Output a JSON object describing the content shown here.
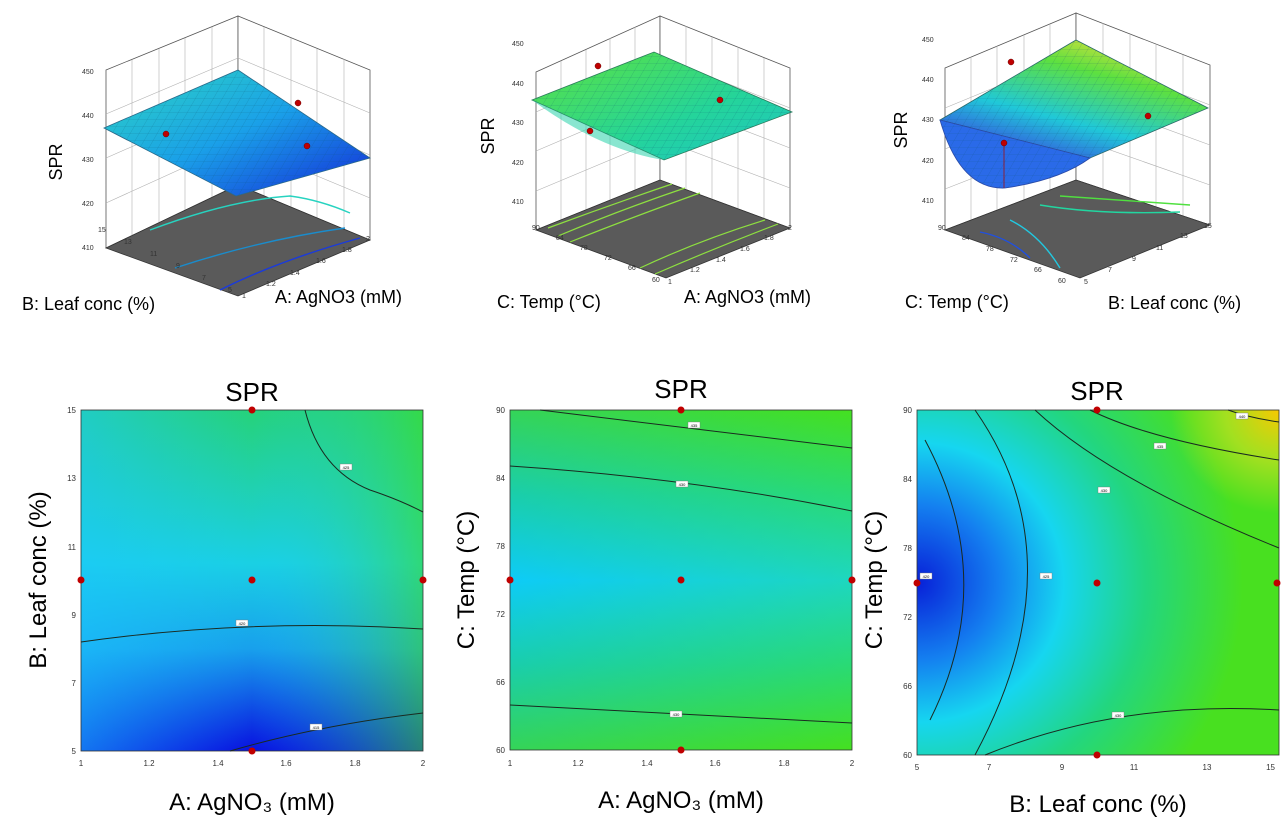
{
  "chart_data": [
    {
      "type": "surface3d",
      "zlabel": "SPR",
      "xlabel": "A: AgNO3 (mM)",
      "ylabel": "B: Leaf conc (%)",
      "x_ticks": [
        "1",
        "1.2",
        "1.4",
        "1.6",
        "1.8",
        "2"
      ],
      "y_ticks": [
        "5",
        "7",
        "9",
        "11",
        "13",
        "15"
      ],
      "z_ticks": [
        "410",
        "420",
        "430",
        "440",
        "450"
      ],
      "zlim": [
        410,
        450
      ],
      "design_points": [
        {
          "a": 1.5,
          "b": 10,
          "spr": 423
        },
        {
          "a": 1.5,
          "b": 15,
          "spr": 430
        },
        {
          "a": 2.0,
          "b": 10,
          "spr": 419
        }
      ]
    },
    {
      "type": "surface3d",
      "zlabel": "SPR",
      "xlabel": "A: AgNO3 (mM)",
      "ylabel": "C: Temp (°C)",
      "x_ticks": [
        "1",
        "1.2",
        "1.4",
        "1.6",
        "1.8",
        "2"
      ],
      "y_ticks": [
        "60",
        "66",
        "72",
        "78",
        "84",
        "90"
      ],
      "z_ticks": [
        "410",
        "420",
        "430",
        "440",
        "450"
      ],
      "zlim": [
        410,
        450
      ],
      "design_points": [
        {
          "a": 1.5,
          "c": 90,
          "spr": 443
        },
        {
          "a": 1.5,
          "c": 75,
          "spr": 423
        },
        {
          "a": 2.0,
          "c": 75,
          "spr": 432
        }
      ]
    },
    {
      "type": "surface3d",
      "zlabel": "SPR",
      "xlabel": "B: Leaf conc (%)",
      "ylabel": "C: Temp (°C)",
      "x_ticks": [
        "5",
        "7",
        "9",
        "11",
        "13",
        "15"
      ],
      "y_ticks": [
        "60",
        "66",
        "72",
        "78",
        "84",
        "90"
      ],
      "z_ticks": [
        "410",
        "420",
        "430",
        "440",
        "450"
      ],
      "zlim": [
        410,
        450
      ],
      "design_points": [
        {
          "b": 10,
          "c": 90,
          "spr": 443
        },
        {
          "b": 10,
          "c": 75,
          "spr": 420
        },
        {
          "b": 15,
          "c": 75,
          "spr": 428
        }
      ]
    },
    {
      "type": "contour",
      "title": "SPR",
      "xlabel": "A: AgNO₃ (mM)",
      "ylabel": "B: Leaf conc (%)",
      "x_ticks": [
        "1",
        "1.2",
        "1.4",
        "1.6",
        "1.8",
        "2"
      ],
      "y_ticks": [
        "5",
        "7",
        "9",
        "11",
        "13",
        "15"
      ],
      "xlim": [
        1,
        2
      ],
      "ylim": [
        5,
        15
      ],
      "contour_labels": [
        "425",
        "420",
        "415"
      ],
      "design_points": [
        {
          "x": 1.5,
          "y": 15
        },
        {
          "x": 1.0,
          "y": 10
        },
        {
          "x": 1.5,
          "y": 10
        },
        {
          "x": 2.0,
          "y": 10
        },
        {
          "x": 1.5,
          "y": 5
        }
      ]
    },
    {
      "type": "contour",
      "title": "SPR",
      "xlabel": "A: AgNO₃ (mM)",
      "ylabel": "C: Temp (°C)",
      "x_ticks": [
        "1",
        "1.2",
        "1.4",
        "1.6",
        "1.8",
        "2"
      ],
      "y_ticks": [
        "60",
        "66",
        "72",
        "78",
        "84",
        "90"
      ],
      "xlim": [
        1,
        2
      ],
      "ylim": [
        60,
        90
      ],
      "contour_labels": [
        "435",
        "430",
        "430"
      ],
      "design_points": [
        {
          "x": 1.5,
          "y": 90
        },
        {
          "x": 1.0,
          "y": 75
        },
        {
          "x": 1.5,
          "y": 75
        },
        {
          "x": 2.0,
          "y": 75
        },
        {
          "x": 1.5,
          "y": 60
        }
      ]
    },
    {
      "type": "contour",
      "title": "SPR",
      "xlabel": "B: Leaf conc (%)",
      "ylabel": "C: Temp (°C)",
      "x_ticks": [
        "5",
        "7",
        "9",
        "11",
        "13",
        "15"
      ],
      "y_ticks": [
        "60",
        "66",
        "72",
        "78",
        "84",
        "90"
      ],
      "xlim": [
        5,
        15
      ],
      "ylim": [
        60,
        90
      ],
      "contour_labels": [
        "440",
        "435",
        "430",
        "425",
        "420",
        "430"
      ],
      "design_points": [
        {
          "x": 10,
          "y": 90
        },
        {
          "x": 5,
          "y": 75
        },
        {
          "x": 10,
          "y": 75
        },
        {
          "x": 15,
          "y": 75
        },
        {
          "x": 10,
          "y": 60
        }
      ]
    }
  ]
}
